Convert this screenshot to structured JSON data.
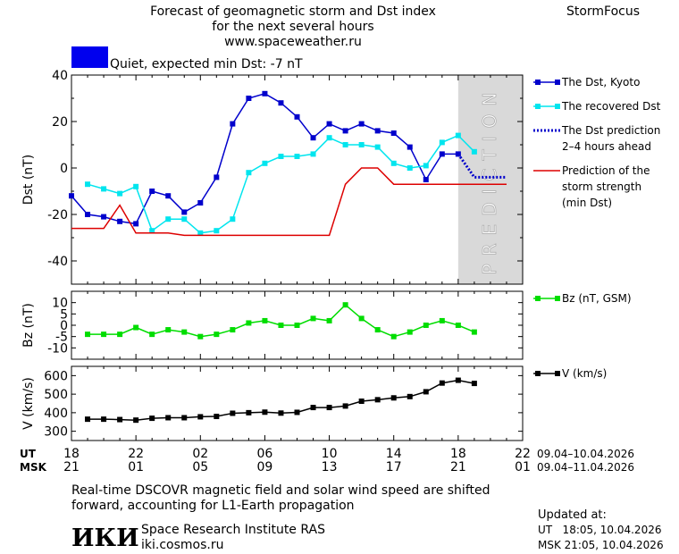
{
  "header": {
    "title_line1": "Forecast of geomagnetic storm and Dst index",
    "title_line2": "for the next several hours",
    "url": "www.spaceweather.ru",
    "brand": "StormFocus",
    "status_text": "Quiet, expected min Dst: -7 nT",
    "status_color": "#0000ee"
  },
  "chart_data": [
    {
      "type": "line",
      "panel": "dst",
      "ylabel": "Dst (nT)",
      "ylim": [
        -50,
        40
      ],
      "yticks": [
        "40",
        "20",
        "0",
        "-20",
        "-40"
      ],
      "prediction_label": "PREDICTION",
      "prediction_x_range": [
        18,
        22
      ],
      "series": [
        {
          "name": "The Dst, Kyoto",
          "color": "#0000cc",
          "style": "line-square",
          "x": [
            0,
            1,
            2,
            3,
            4,
            5,
            6,
            7,
            8,
            9,
            10,
            11,
            12,
            13,
            14,
            15,
            16,
            17,
            18,
            19,
            20,
            21,
            22,
            23,
            24
          ],
          "y": [
            -12,
            -20,
            -21,
            -23,
            -24,
            -10,
            -12,
            -19,
            -15,
            -4,
            19,
            30,
            32,
            28,
            22,
            13,
            19,
            16,
            19,
            16,
            15,
            9,
            -5,
            6,
            6
          ]
        },
        {
          "name": "The recovered Dst",
          "color": "#00e5ee",
          "style": "line-square",
          "x": [
            1,
            2,
            3,
            4,
            5,
            6,
            7,
            8,
            9,
            10,
            11,
            12,
            13,
            14,
            15,
            16,
            17,
            18,
            19,
            20,
            21,
            22,
            23,
            24,
            25
          ],
          "y": [
            -7,
            -9,
            -11,
            -8,
            -27,
            -22,
            -22,
            -28,
            -27,
            -22,
            -2,
            2,
            5,
            5,
            6,
            13,
            10,
            10,
            9,
            2,
            0,
            1,
            11,
            14,
            7
          ]
        },
        {
          "name": "The Dst prediction 2–4 hours ahead",
          "color": "#0000cc",
          "style": "dotted",
          "x": [
            24,
            25,
            26,
            27
          ],
          "y": [
            6,
            -4,
            -4,
            -4
          ]
        },
        {
          "name": "Prediction of the storm strength (min Dst)",
          "color": "#dd0000",
          "style": "step",
          "x": [
            0,
            2,
            3,
            4,
            5,
            6,
            7,
            8,
            9,
            10,
            11,
            12,
            13,
            14,
            15,
            16,
            17,
            18,
            19,
            20,
            21,
            22,
            23,
            24,
            25,
            26,
            27
          ],
          "y": [
            -26,
            -26,
            -16,
            -28,
            -28,
            -28,
            -29,
            -29,
            -29,
            -29,
            -29,
            -29,
            -29,
            -29,
            -29,
            -29,
            -7,
            0,
            0,
            -7,
            -7,
            -7,
            -7,
            -7,
            -7,
            -7,
            -7
          ]
        }
      ],
      "legend": [
        {
          "label": [
            "The Dst, Kyoto"
          ],
          "color": "#0000cc",
          "style": "line-square"
        },
        {
          "label": [
            "The recovered Dst"
          ],
          "color": "#00e5ee",
          "style": "line-square"
        },
        {
          "label": [
            "The Dst prediction",
            "2–4 hours ahead"
          ],
          "color": "#0000cc",
          "style": "dotted"
        },
        {
          "label": [
            "Prediction of the",
            "storm strength",
            "(min Dst)"
          ],
          "color": "#dd0000",
          "style": "line"
        }
      ]
    },
    {
      "type": "line",
      "panel": "bz",
      "ylabel": "Bz (nT)",
      "ylim": [
        -15,
        15
      ],
      "yticks": [
        "10",
        "5",
        "0",
        "-5",
        "-10"
      ],
      "series": [
        {
          "name": "Bz (nT, GSM)",
          "color": "#00dd00",
          "x": [
            1,
            2,
            3,
            4,
            5,
            6,
            7,
            8,
            9,
            10,
            11,
            12,
            13,
            14,
            15,
            16,
            17,
            18,
            19,
            20,
            21,
            22,
            23,
            24,
            25
          ],
          "y": [
            -4,
            -4,
            -4,
            -1,
            -4,
            -2,
            -3,
            -5,
            -4,
            -2,
            1,
            2,
            0,
            0,
            3,
            2,
            9,
            3,
            -2,
            -5,
            -3,
            0,
            2,
            0,
            -3
          ]
        }
      ],
      "legend": [
        {
          "label": [
            "Bz (nT, GSM)"
          ],
          "color": "#00dd00",
          "style": "line-square"
        }
      ]
    },
    {
      "type": "line",
      "panel": "v",
      "ylabel": "V (km/s)",
      "ylim": [
        250,
        650
      ],
      "yticks": [
        "600",
        "500",
        "400",
        "300"
      ],
      "series": [
        {
          "name": "V (km/s)",
          "color": "#000000",
          "x": [
            1,
            2,
            3,
            4,
            5,
            6,
            7,
            8,
            9,
            10,
            11,
            12,
            13,
            14,
            15,
            16,
            17,
            18,
            19,
            20,
            21,
            22,
            23,
            24,
            25
          ],
          "y": [
            365,
            365,
            363,
            360,
            370,
            373,
            373,
            378,
            380,
            397,
            400,
            403,
            398,
            402,
            428,
            428,
            436,
            462,
            470,
            480,
            487,
            513,
            560,
            575,
            558
          ]
        }
      ],
      "legend": [
        {
          "label": [
            "V (km/s)"
          ],
          "color": "#000000",
          "style": "line-square"
        }
      ]
    }
  ],
  "time_axis": {
    "ut_label": "UT",
    "msk_label": "MSK",
    "ut_ticks": [
      "18",
      "22",
      "02",
      "06",
      "10",
      "14",
      "18",
      "22"
    ],
    "msk_ticks": [
      "21",
      "01",
      "05",
      "09",
      "13",
      "17",
      "21",
      "01"
    ],
    "ut_range": "09.04–10.04.2026",
    "msk_range": "09.04–11.04.2026"
  },
  "footer": {
    "note_line1": "Real-time DSCOVR magnetic field and solar wind speed are shifted",
    "note_line2": "forward, accounting for L1-Earth propagation",
    "logo_text": "ИКИ",
    "institute": "Space Research Institute RAS",
    "site": "iki.cosmos.ru",
    "updated_label": "Updated at:",
    "updated_ut": "UT   18:05, 10.04.2026",
    "updated_msk": "MSK 21:05, 10.04.2026"
  }
}
